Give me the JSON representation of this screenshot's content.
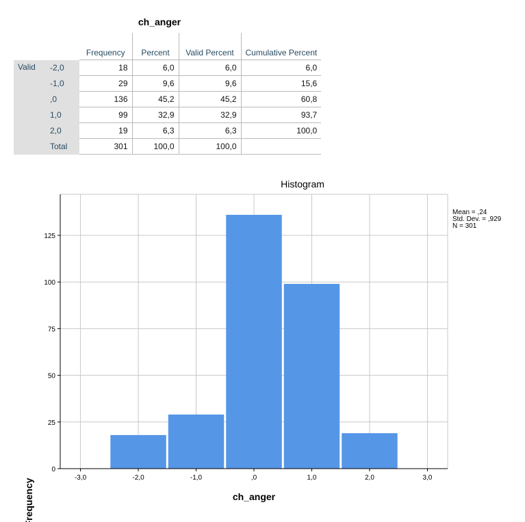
{
  "table": {
    "title": "ch_anger",
    "group_label": "Valid",
    "headers": [
      "Frequency",
      "Percent",
      "Valid Percent",
      "Cumulative Percent"
    ],
    "rows": [
      {
        "label": "-2,0",
        "frequency": "18",
        "percent": "6,0",
        "valid_percent": "6,0",
        "cumulative_percent": "6,0"
      },
      {
        "label": "-1,0",
        "frequency": "29",
        "percent": "9,6",
        "valid_percent": "9,6",
        "cumulative_percent": "15,6"
      },
      {
        "label": ",0",
        "frequency": "136",
        "percent": "45,2",
        "valid_percent": "45,2",
        "cumulative_percent": "60,8"
      },
      {
        "label": "1,0",
        "frequency": "99",
        "percent": "32,9",
        "valid_percent": "32,9",
        "cumulative_percent": "93,7"
      },
      {
        "label": "2,0",
        "frequency": "19",
        "percent": "6,3",
        "valid_percent": "6,3",
        "cumulative_percent": "100,0"
      },
      {
        "label": "Total",
        "frequency": "301",
        "percent": "100,0",
        "valid_percent": "100,0",
        "cumulative_percent": ""
      }
    ]
  },
  "chart_data": {
    "type": "bar",
    "title": "Histogram",
    "xlabel": "ch_anger",
    "ylabel": "Frequency",
    "x_ticks": [
      -3,
      -2,
      -1,
      0,
      1,
      2,
      3
    ],
    "x_tick_labels": [
      "-3,0",
      "-2,0",
      "-1,0",
      ",0",
      "1,0",
      "2,0",
      "3,0"
    ],
    "xlim": [
      -3.35,
      3.35
    ],
    "y_ticks": [
      0,
      25,
      50,
      75,
      100,
      125
    ],
    "ylim": [
      0,
      147
    ],
    "categories": [
      -2,
      -1,
      0,
      1,
      2
    ],
    "values": [
      18,
      29,
      136,
      99,
      19
    ],
    "bar_color": "#5596e6",
    "grid": true,
    "stats": [
      "Mean = ,24",
      "Std. Dev. = ,929",
      "N = 301"
    ]
  }
}
